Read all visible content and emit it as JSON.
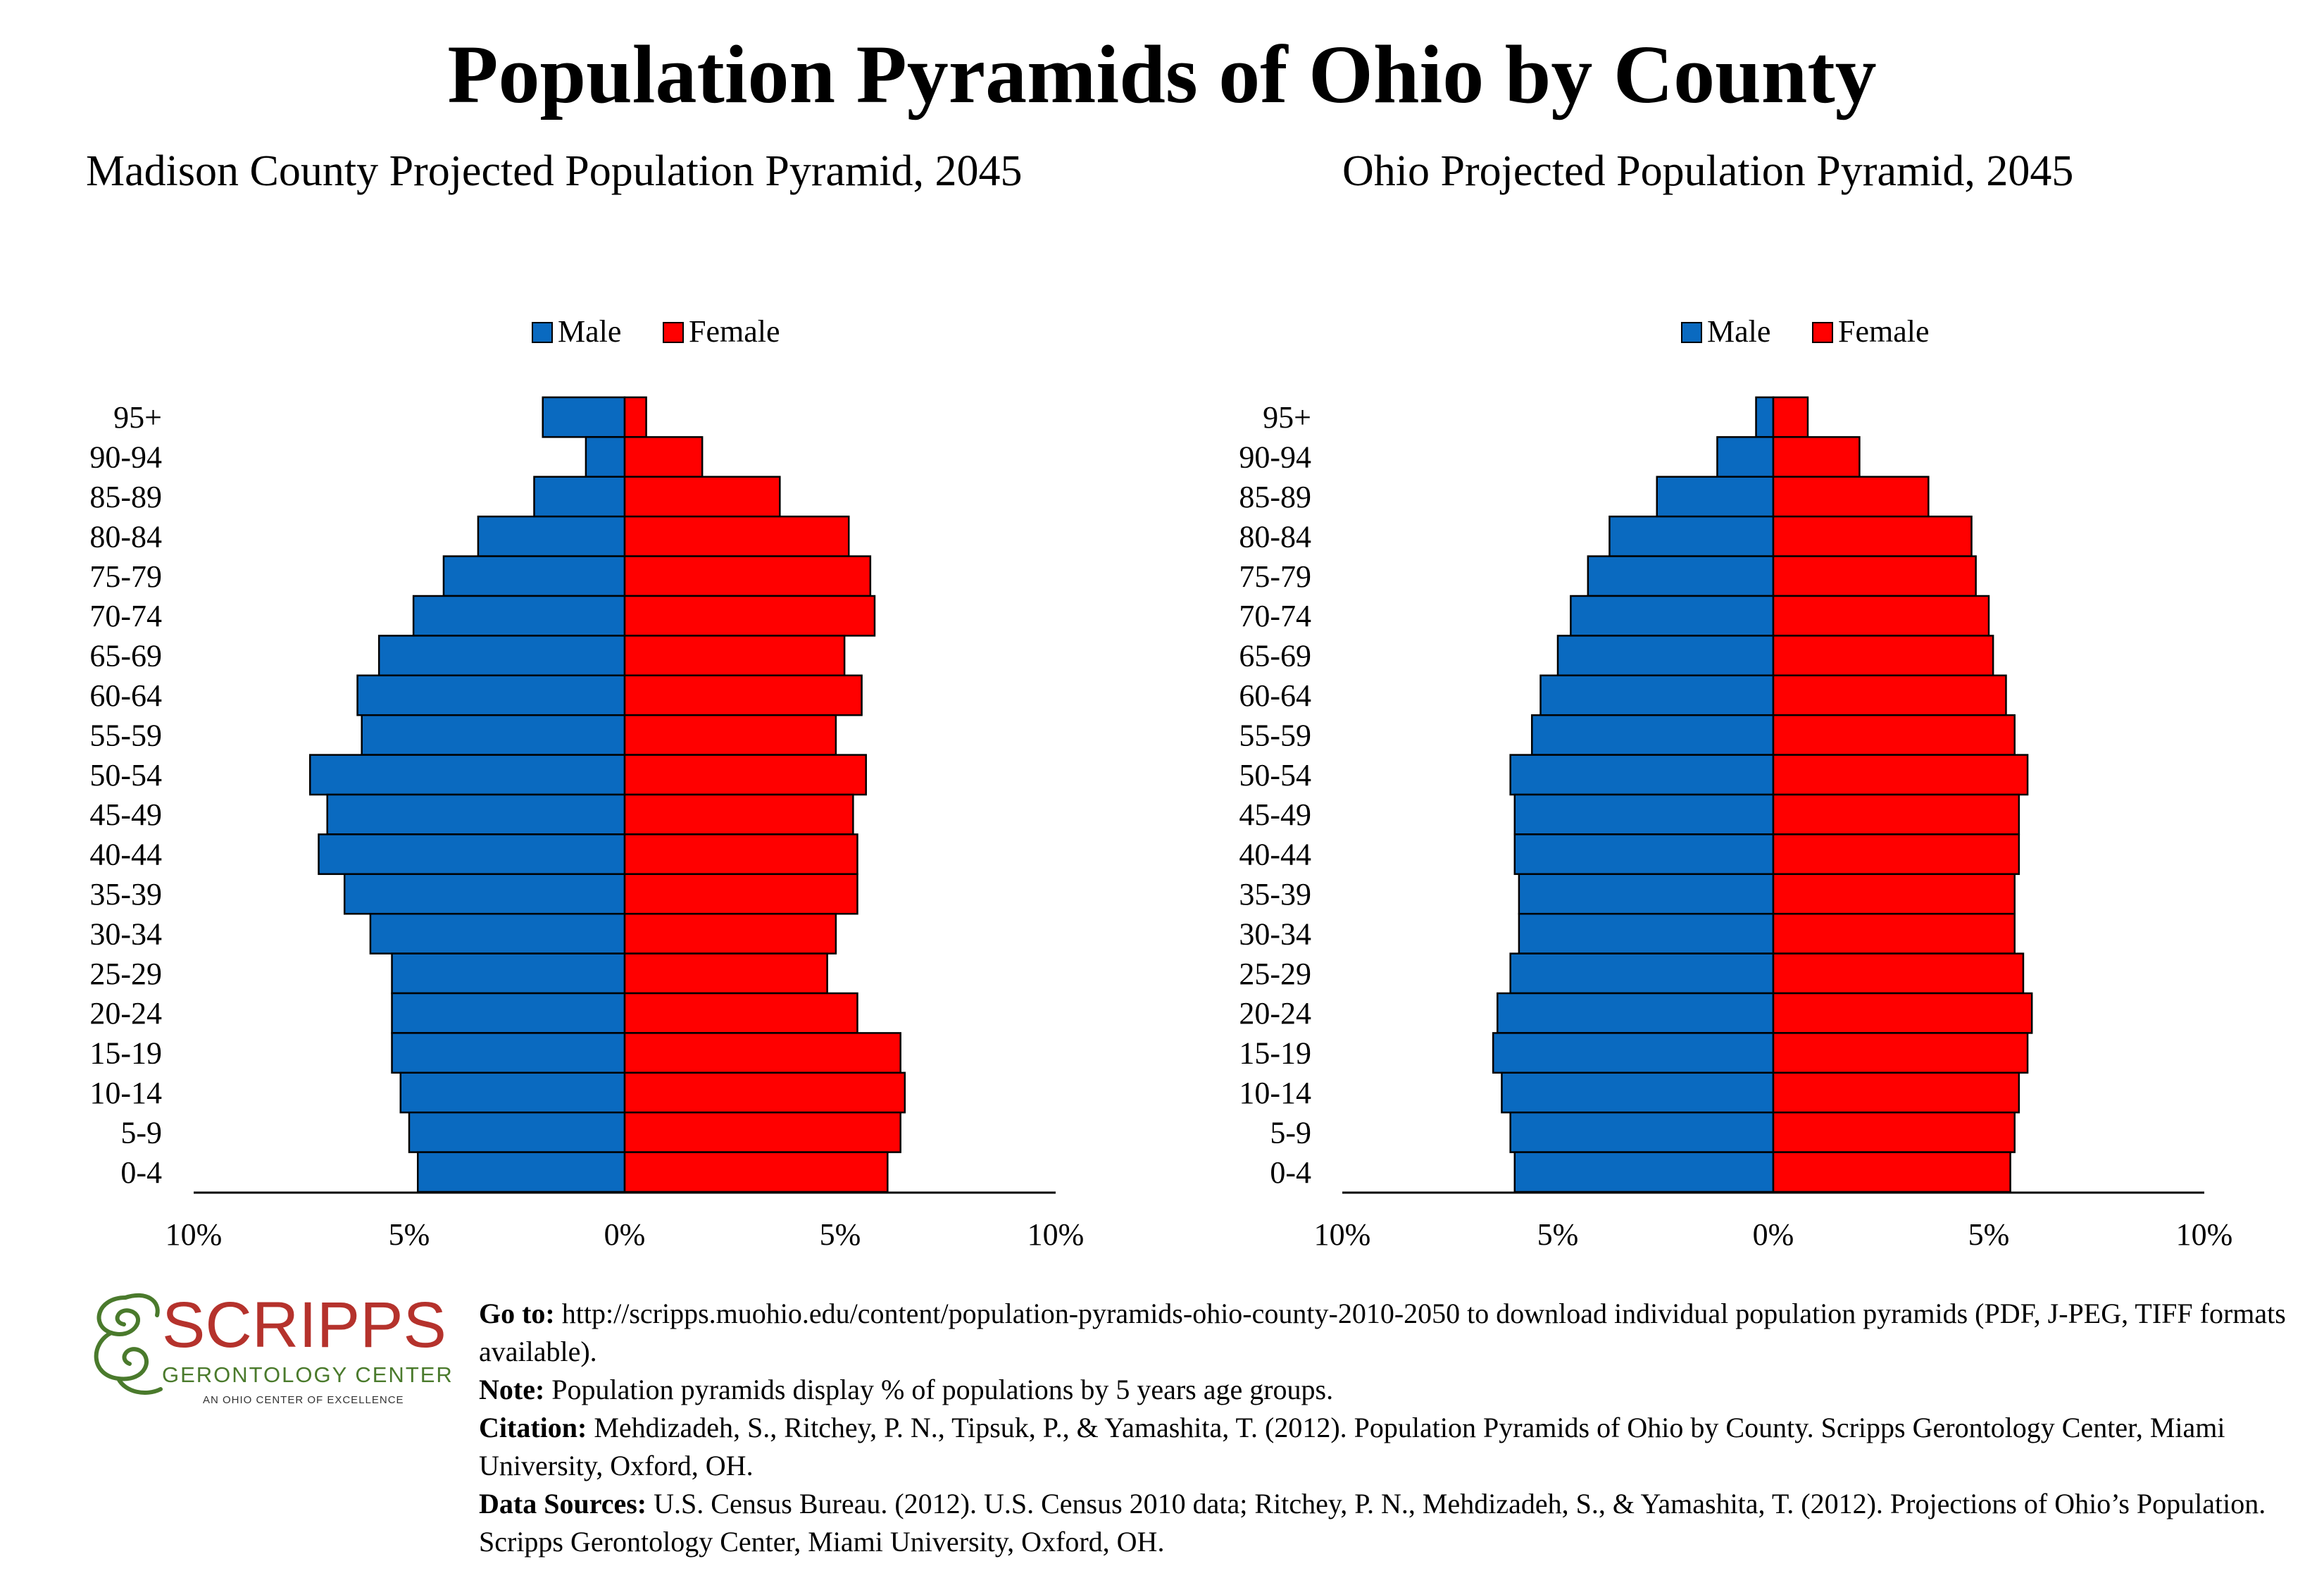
{
  "title": "Population Pyramids of Ohio by County",
  "legend": {
    "male": "Male",
    "female": "Female"
  },
  "colors": {
    "male": "#0a6ac0",
    "female": "#ff0000",
    "outline": "#000000"
  },
  "chart_data": [
    {
      "type": "bar",
      "orientation": "horizontal-pyramid",
      "title": "Madison County Projected Population Pyramid, 2045",
      "categories": [
        "95+",
        "90-94",
        "85-89",
        "80-84",
        "75-79",
        "70-74",
        "65-69",
        "60-64",
        "55-59",
        "50-54",
        "45-49",
        "40-44",
        "35-39",
        "30-34",
        "25-29",
        "20-24",
        "15-19",
        "10-14",
        "5-9",
        "0-4"
      ],
      "series": [
        {
          "name": "Male",
          "values": [
            1.9,
            0.9,
            2.1,
            3.4,
            4.2,
            4.9,
            5.7,
            6.2,
            6.1,
            7.3,
            6.9,
            7.1,
            6.5,
            5.9,
            5.4,
            5.4,
            5.4,
            5.2,
            5.0,
            4.8
          ]
        },
        {
          "name": "Female",
          "values": [
            0.5,
            1.8,
            3.6,
            5.2,
            5.7,
            5.8,
            5.1,
            5.5,
            4.9,
            5.6,
            5.3,
            5.4,
            5.4,
            4.9,
            4.7,
            5.4,
            6.4,
            6.5,
            6.4,
            6.1
          ]
        }
      ],
      "xlim": [
        -10,
        10
      ],
      "tick_labels": [
        "10%",
        "5%",
        "0%",
        "5%",
        "10%"
      ],
      "legend_position": "top-center"
    },
    {
      "type": "bar",
      "orientation": "horizontal-pyramid",
      "title": "Ohio Projected Population Pyramid, 2045",
      "categories": [
        "95+",
        "90-94",
        "85-89",
        "80-84",
        "75-79",
        "70-74",
        "65-69",
        "60-64",
        "55-59",
        "50-54",
        "45-49",
        "40-44",
        "35-39",
        "30-34",
        "25-29",
        "20-24",
        "15-19",
        "10-14",
        "5-9",
        "0-4"
      ],
      "series": [
        {
          "name": "Male",
          "values": [
            0.4,
            1.3,
            2.7,
            3.8,
            4.3,
            4.7,
            5.0,
            5.4,
            5.6,
            6.1,
            6.0,
            6.0,
            5.9,
            5.9,
            6.1,
            6.4,
            6.5,
            6.3,
            6.1,
            6.0
          ]
        },
        {
          "name": "Female",
          "values": [
            0.8,
            2.0,
            3.6,
            4.6,
            4.7,
            5.0,
            5.1,
            5.4,
            5.6,
            5.9,
            5.7,
            5.7,
            5.6,
            5.6,
            5.8,
            6.0,
            5.9,
            5.7,
            5.6,
            5.5
          ]
        }
      ],
      "xlim": [
        -10,
        10
      ],
      "tick_labels": [
        "10%",
        "5%",
        "0%",
        "5%",
        "10%"
      ],
      "legend_position": "top-center"
    }
  ],
  "logo": {
    "name": "SCRIPPS",
    "subtitle": "GERONTOLOGY CENTER",
    "tagline": "AN OHIO CENTER OF EXCELLENCE"
  },
  "footer": {
    "goto_label": "Go to:",
    "goto_text": "http://scripps.muohio.edu/content/population-pyramids-ohio-county-2010-2050 to download individual population pyramids (PDF, J-PEG, TIFF formats available).",
    "note_label": "Note:",
    "note_text": "Population pyramids display % of populations by 5 years age groups.",
    "citation_label": "Citation:",
    "citation_text": "Mehdizadeh, S., Ritchey, P. N., Tipsuk, P., & Yamashita, T. (2012). Population Pyramids of Ohio by County. Scripps Gerontology Center, Miami University, Oxford, OH.",
    "sources_label": "Data Sources:",
    "sources_text": "U.S. Census Bureau. (2012). U.S. Census 2010 data; Ritchey, P. N., Mehdizadeh, S., & Yamashita, T. (2012). Projections of Ohio’s Population. Scripps Gerontology Center, Miami University, Oxford, OH."
  }
}
